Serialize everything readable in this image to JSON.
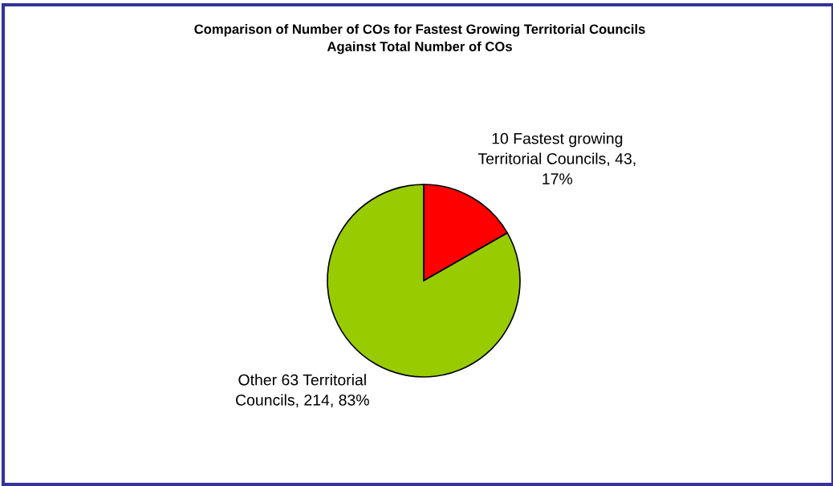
{
  "chart_data": {
    "type": "pie",
    "title": "Comparison of Number of COs for Fastest Growing Territorial Councils\nAgainst Total Number of COs",
    "categories": [
      "10 Fastest growing\nTerritorial Councils",
      "Other 63 Territorial\nCouncils"
    ],
    "values": [
      43,
      214
    ],
    "value_labels": [
      "43,\n17%",
      "214, 83%"
    ],
    "colors": [
      "#ff0000",
      "#99cc00"
    ]
  }
}
